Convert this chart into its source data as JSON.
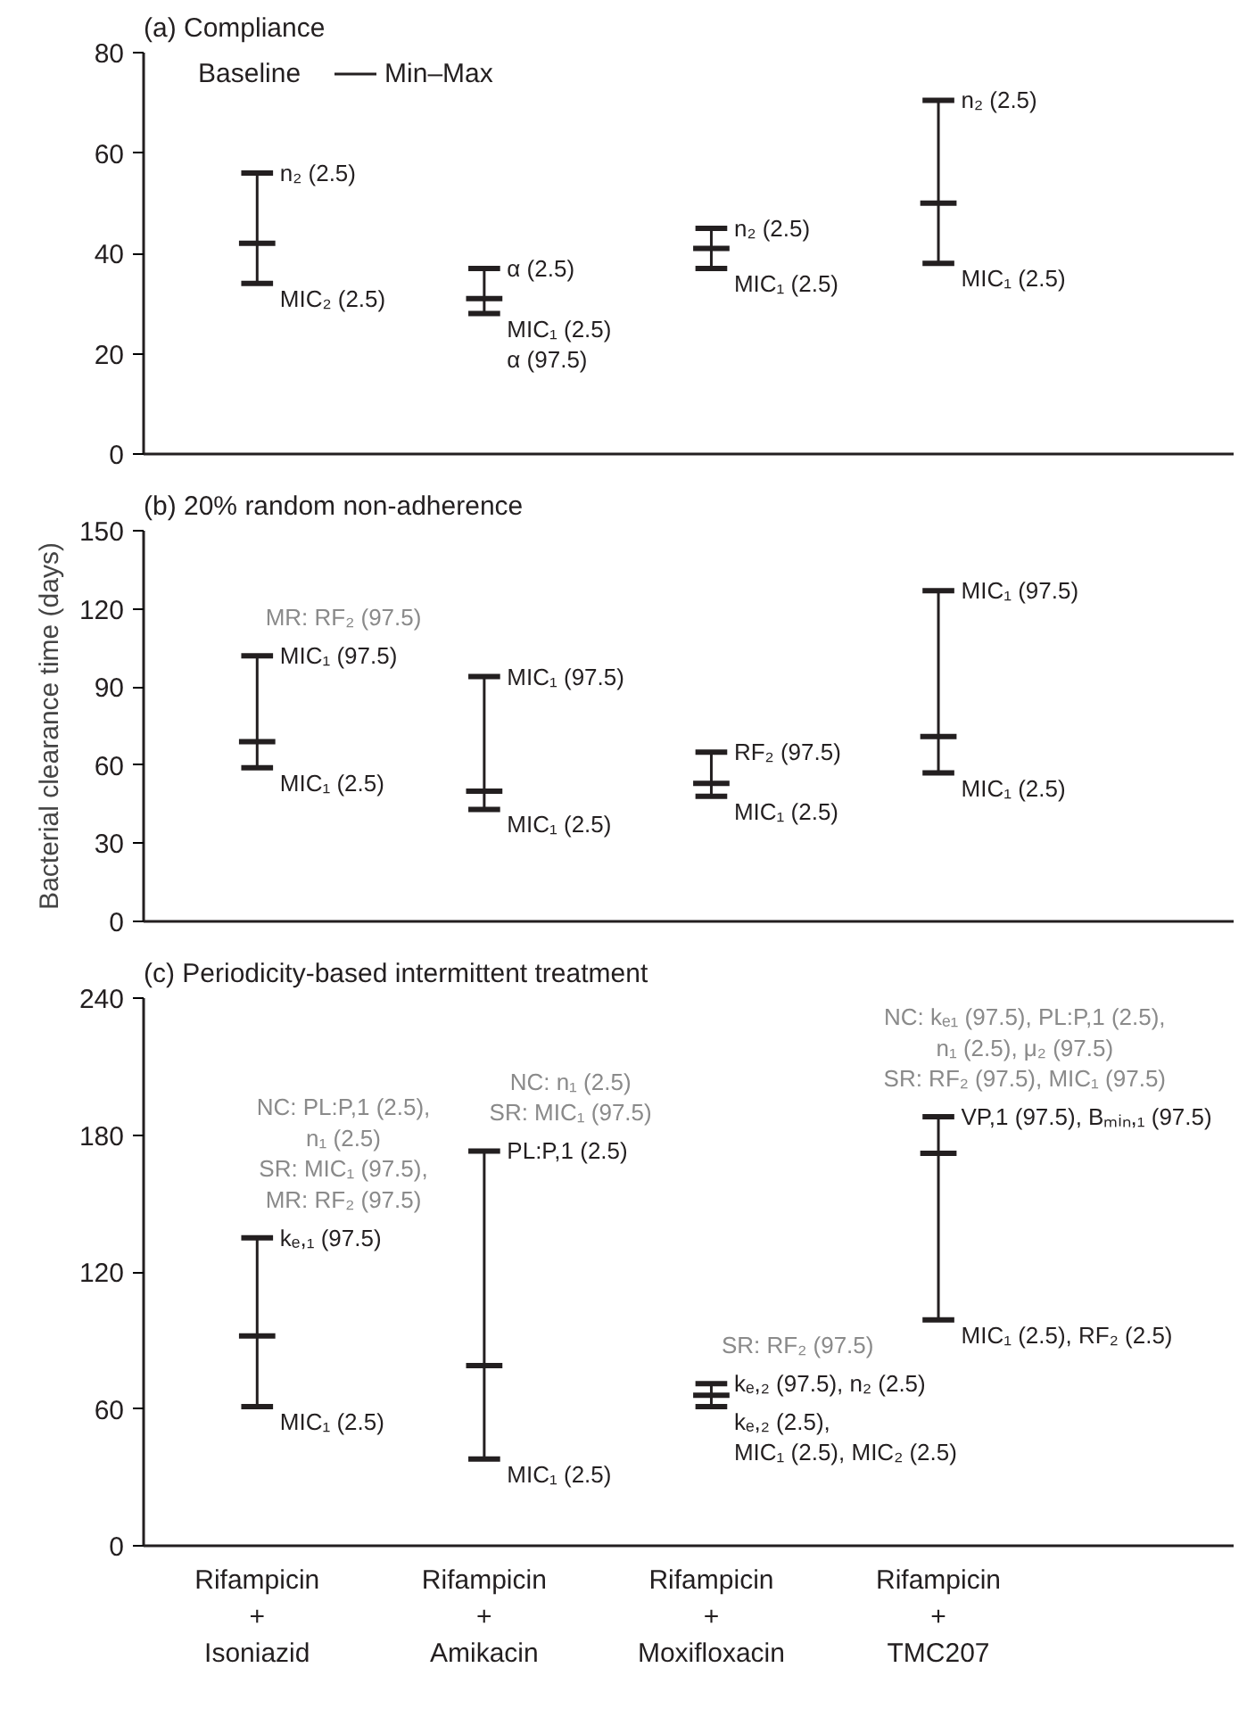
{
  "chart_data": [
    {
      "type": "box",
      "title": "(a) Compliance",
      "categories": [
        "Rifampicin\n+\nIsoniazid",
        "Rifampicin\n+\nAmikacin",
        "Rifampicin\n+\nMoxifloxacin",
        "Rifampicin\n+\nTMC207"
      ],
      "ylim": [
        0,
        80
      ],
      "yticks": [
        0,
        20,
        40,
        60,
        80
      ],
      "tick_labels": "y",
      "legend": "top left",
      "series": [
        {
          "name": "Baseline",
          "color": "#231f20",
          "boxes": [
            {
              "low": 34,
              "q1": 42,
              "median": 42,
              "q3": 42,
              "high": 56
            },
            {
              "low": 28,
              "q1": 31,
              "median": 31,
              "q3": 31,
              "high": 37
            },
            {
              "low": 37,
              "q1": 41,
              "median": 41,
              "q3": 41,
              "high": 45
            },
            {
              "low": 38,
              "q1": 50,
              "median": 50,
              "q3": 50,
              "high": 70.5
            }
          ]
        }
      ],
      "annotations": [
        "Min–Max",
        {
          "text": "n₂ (2.5)",
          "x": "Rifampicin\n+\nIsoniazid",
          "y": 56
        },
        {
          "text": "MIC₂ (2.5)",
          "x": "Rifampicin\n+\nIsoniazid",
          "y": 34
        },
        {
          "text": "α (2.5)",
          "x": "Rifampicin\n+\nAmikacin",
          "y": 37
        },
        {
          "text": "MIC₁ (2.5)\nα (97.5)",
          "x": "Rifampicin\n+\nAmikacin",
          "y": 28
        },
        {
          "text": "n₂ (2.5)",
          "x": "Rifampicin\n+\nMoxifloxacin",
          "y": 45
        },
        {
          "text": "MIC₁ (2.5)",
          "x": "Rifampicin\n+\nMoxifloxacin",
          "y": 37
        },
        {
          "text": "n₂ (2.5)",
          "x": "Rifampicin\n+\nTMC207",
          "y": 70.5
        },
        {
          "text": "MIC₁ (2.5)",
          "x": "Rifampicin\n+\nTMC207",
          "y": 38
        }
      ]
    },
    {
      "type": "box",
      "title": "(b) 20% random non-adherence",
      "ylabel": "Bacterial clearance time (days)",
      "categories": [
        "Rifampicin\n+\nIsoniazid",
        "Rifampicin\n+\nAmikacin",
        "Rifampicin\n+\nMoxifloxacin",
        "Rifampicin\n+\nTMC207"
      ],
      "ylim": [
        0,
        150
      ],
      "yticks": [
        0,
        30,
        60,
        90,
        120,
        150
      ],
      "tick_labels": "y",
      "series": [
        {
          "color": "#231f20",
          "boxes": [
            {
              "low": 59,
              "q1": 69,
              "median": 69,
              "q3": 69,
              "high": 102
            },
            {
              "low": 43,
              "q1": 50,
              "median": 50,
              "q3": 50,
              "high": 94
            },
            {
              "low": 48,
              "q1": 53,
              "median": 53,
              "q3": 53,
              "high": 65
            },
            {
              "low": 57,
              "q1": 71,
              "median": 71,
              "q3": 71,
              "high": 127
            }
          ]
        }
      ],
      "annotations": [
        {
          "text": "MR: RF₂ (97.5)",
          "x": "Rifampicin\n+\nIsoniazid",
          "y": 102
        },
        {
          "text": "MIC₁ (97.5)",
          "x": "Rifampicin\n+\nIsoniazid",
          "y": 102
        },
        {
          "text": "MIC₁ (2.5)",
          "x": "Rifampicin\n+\nIsoniazid",
          "y": 59
        },
        {
          "text": "MIC₁ (97.5)",
          "x": "Rifampicin\n+\nAmikacin",
          "y": 94
        },
        {
          "text": "MIC₁ (2.5)",
          "x": "Rifampicin\n+\nAmikacin",
          "y": 43
        },
        {
          "text": "RF₂ (97.5)",
          "x": "Rifampicin\n+\nMoxifloxacin",
          "y": 65
        },
        {
          "text": "MIC₁ (2.5)",
          "x": "Rifampicin\n+\nMoxifloxacin",
          "y": 48
        },
        {
          "text": "MIC₁ (97.5)",
          "x": "Rifampicin\n+\nTMC207",
          "y": 127
        },
        {
          "text": "MIC₁ (2.5)",
          "x": "Rifampicin\n+\nTMC207",
          "y": 57
        }
      ]
    },
    {
      "type": "box",
      "title": "(c) Periodicity-based intermittent treatment",
      "categories": [
        "Rifampicin\n+\nIsoniazid",
        "Rifampicin\n+\nAmikacin",
        "Rifampicin\n+\nMoxifloxacin",
        "Rifampicin\n+\nTMC207"
      ],
      "ylim": [
        0,
        240
      ],
      "yticks": [
        0,
        60,
        120,
        180,
        240
      ],
      "series": [
        {
          "color": "#231f20",
          "boxes": [
            {
              "low": 61,
              "q1": 92,
              "median": 92,
              "q3": 92,
              "high": 135
            },
            {
              "low": 38,
              "q1": 79,
              "median": 79,
              "q3": 79,
              "high": 173
            },
            {
              "low": 61,
              "q1": 66,
              "median": 66,
              "q3": 66,
              "high": 71
            },
            {
              "low": 99,
              "q1": 172,
              "median": 172,
              "q3": 172,
              "high": 188
            }
          ]
        }
      ],
      "annotations": [
        {
          "text": "NC: PL:P,1 (2.5),\nn₁ (2.5)\nSR: MIC₁ (97.5),\nMR: RF₂ (97.5)",
          "x": "Rifampicin\n+\nIsoniazid",
          "y": 135
        },
        {
          "text": "kₑ,₁ (97.5)",
          "x": "Rifampicin\n+\nIsoniazid",
          "y": 135
        },
        {
          "text": "MIC₁ (2.5)",
          "x": "Rifampicin\n+\nIsoniazid",
          "y": 61
        },
        {
          "text": "NC: n₁ (2.5)\nSR: MIC₁ (97.5)",
          "x": "Rifampicin\n+\nAmikacin",
          "y": 173
        },
        {
          "text": "PL:P,1 (2.5)",
          "x": "Rifampicin\n+\nAmikacin",
          "y": 173
        },
        {
          "text": "MIC₁ (2.5)",
          "x": "Rifampicin\n+\nAmikacin",
          "y": 38
        },
        {
          "text": "SR: RF₂ (97.5)",
          "x": "Rifampicin\n+\nMoxifloxacin",
          "y": 71
        },
        {
          "text": "kₑ,₂ (97.5), n₂ (2.5)",
          "x": "Rifampicin\n+\nMoxifloxacin",
          "y": 71
        },
        {
          "text": "kₑ,₂ (2.5),\nMIC₁ (2.5), MIC₂ (2.5)",
          "x": "Rifampicin\n+\nMoxifloxacin",
          "y": 61
        },
        {
          "text": "NC: kₑ₁ (97.5), PL:P,1 (2.5),\nn₁ (2.5), μ₂ (97.5)\nSR: RF₂ (97.5), MIC₁ (97.5)",
          "x": "Rifampicin\n+\nTMC207",
          "y": 188
        },
        {
          "text": "VP,1 (97.5), Bₘᵢₙ,₁ (97.5)",
          "x": "Rifampicin\n+\nTMC207",
          "y": 188
        },
        {
          "text": "MIC₁ (2.5), RF₂ (2.5)",
          "x": "Rifampicin\n+\nTMC207",
          "y": 99
        }
      ]
    }
  ]
}
